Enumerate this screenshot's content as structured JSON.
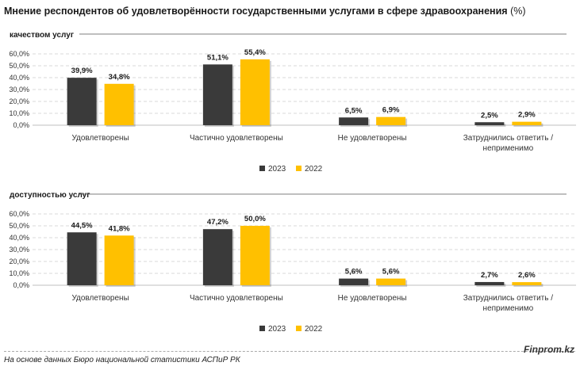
{
  "title": "Мнение респондентов об удовлетворённости государственными услугами в сфере здравоохранения",
  "title_unit": "(%)",
  "source": "На основе данных Бюро национальной статистики АСПиР РК",
  "brand": "Finprom.kz",
  "colors": {
    "2023": "#3a3a3a",
    "2022": "#ffc000"
  },
  "chart_data": [
    {
      "type": "bar",
      "title": "качеством услуг",
      "categories": [
        "Удовлетворены",
        "Частично удовлетворены",
        "Не удовлетворены",
        "Затруднились ответить / неприменимо"
      ],
      "series": [
        {
          "name": "2023",
          "values": [
            39.9,
            51.1,
            6.5,
            2.5
          ],
          "labels": [
            "39,9%",
            "51,1%",
            "6,5%",
            "2,5%"
          ]
        },
        {
          "name": "2022",
          "values": [
            34.8,
            55.4,
            6.9,
            2.9
          ],
          "labels": [
            "34,8%",
            "55,4%",
            "6,9%",
            "2,9%"
          ]
        }
      ],
      "yticks": [
        "0,0%",
        "10,0%",
        "20,0%",
        "30,0%",
        "40,0%",
        "50,0%",
        "60,0%"
      ],
      "ylim": [
        0,
        60
      ],
      "grid": true,
      "legend": "bottom-center"
    },
    {
      "type": "bar",
      "title": "доступностью услуг",
      "categories": [
        "Удовлетворены",
        "Частично удовлетворены",
        "Не удовлетворены",
        "Затруднились ответить / неприменимо"
      ],
      "series": [
        {
          "name": "2023",
          "values": [
            44.5,
            47.2,
            5.6,
            2.7
          ],
          "labels": [
            "44,5%",
            "47,2%",
            "5,6%",
            "2,7%"
          ]
        },
        {
          "name": "2022",
          "values": [
            41.8,
            50.0,
            5.6,
            2.6
          ],
          "labels": [
            "41,8%",
            "50,0%",
            "5,6%",
            "2,6%"
          ]
        }
      ],
      "yticks": [
        "0,0%",
        "10,0%",
        "20,0%",
        "30,0%",
        "40,0%",
        "50,0%",
        "60,0%"
      ],
      "ylim": [
        0,
        60
      ],
      "grid": true,
      "legend": "bottom-center"
    }
  ]
}
